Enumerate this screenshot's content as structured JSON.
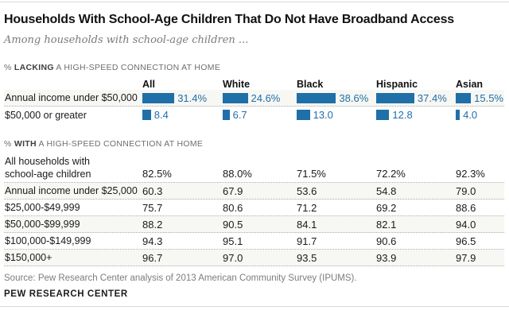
{
  "header": {
    "title": "Households With School-Age Children That Do Not Have Broadband Access",
    "subtitle": "Among households with school-age children ..."
  },
  "columns": [
    "All",
    "White",
    "Black",
    "Hispanic",
    "Asian"
  ],
  "lacking_section": {
    "label": {
      "prefix": "% ",
      "bold": "LACKING",
      "suffix": " A HIGH-SPEED CONNECTION AT HOME"
    },
    "rows": [
      {
        "label": "Annual income under $50,000",
        "values": [
          31.4,
          24.6,
          38.6,
          37.4,
          15.5
        ],
        "display": [
          "31.4%",
          "24.6%",
          "38.6%",
          "37.4%",
          "15.5%"
        ]
      },
      {
        "label": "$50,000 or greater",
        "values": [
          8.4,
          6.7,
          13.0,
          12.8,
          4.0
        ],
        "display": [
          "8.4",
          "6.7",
          "13.0",
          "12.8",
          "4.0"
        ]
      }
    ]
  },
  "with_section": {
    "label": {
      "prefix": "% ",
      "bold": "WITH",
      "suffix": " A HIGH-SPEED CONNECTION AT HOME"
    },
    "rows": [
      {
        "label": "All households with school-age children",
        "display": [
          "82.5%",
          "88.0%",
          "71.5%",
          "72.2%",
          "92.3%"
        ]
      },
      {
        "label": "Annual income under $25,000",
        "display": [
          "60.3",
          "67.9",
          "53.6",
          "54.8",
          "79.0"
        ]
      },
      {
        "label": "$25,000-$49,999",
        "display": [
          "75.7",
          "80.6",
          "71.2",
          "69.2",
          "88.6"
        ]
      },
      {
        "label": "$50,000-$99,999",
        "display": [
          "88.2",
          "90.5",
          "84.1",
          "82.1",
          "94.0"
        ]
      },
      {
        "label": "$100,000-$149,999",
        "display": [
          "94.3",
          "95.1",
          "91.7",
          "90.6",
          "96.5"
        ]
      },
      {
        "label": "$150,000+",
        "display": [
          "96.7",
          "97.0",
          "93.5",
          "93.9",
          "97.9"
        ]
      }
    ]
  },
  "footer": {
    "source": "Source: Pew Research Center analysis of 2013 American Community Survey (IPUMS).",
    "brand": "PEW RESEARCH CENTER"
  },
  "colors": {
    "bar_blue": "#1f6fa8"
  },
  "chart_data": [
    {
      "type": "bar",
      "title": "% LACKING a high-speed connection at home",
      "categories": [
        "All",
        "White",
        "Black",
        "Hispanic",
        "Asian"
      ],
      "series": [
        {
          "name": "Annual income under $50,000",
          "values": [
            31.4,
            24.6,
            38.6,
            37.4,
            15.5
          ]
        },
        {
          "name": "$50,000 or greater",
          "values": [
            8.4,
            6.7,
            13.0,
            12.8,
            4.0
          ]
        }
      ],
      "orientation": "horizontal-mini-bars",
      "value_labels": true,
      "xlim": [
        0,
        40
      ]
    },
    {
      "type": "table",
      "title": "% WITH a high-speed connection at home",
      "columns": [
        "All",
        "White",
        "Black",
        "Hispanic",
        "Asian"
      ],
      "row_labels": [
        "All households with school-age children",
        "Annual income under $25,000",
        "$25,000-$49,999",
        "$50,000-$99,999",
        "$100,000-$149,999",
        "$150,000+"
      ],
      "rows": [
        [
          82.5,
          88.0,
          71.5,
          72.2,
          92.3
        ],
        [
          60.3,
          67.9,
          53.6,
          54.8,
          79.0
        ],
        [
          75.7,
          80.6,
          71.2,
          69.2,
          88.6
        ],
        [
          88.2,
          90.5,
          84.1,
          82.1,
          94.0
        ],
        [
          94.3,
          95.1,
          91.7,
          90.6,
          96.5
        ],
        [
          96.7,
          97.0,
          93.5,
          93.9,
          97.9
        ]
      ]
    }
  ]
}
